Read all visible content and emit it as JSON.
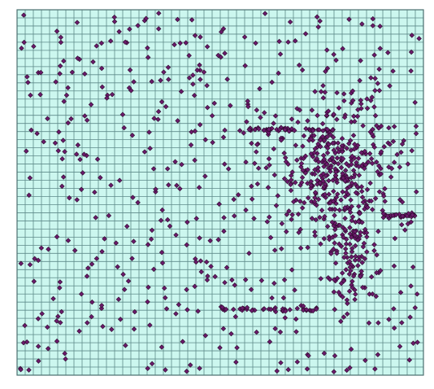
{
  "map": {
    "background_color": "#ffffff",
    "fill_color": "#ccf7ef",
    "grid_color": "#5e8a8a",
    "frame_color": "#4a6f6f",
    "point_fill": "#6b1a6b",
    "point_stroke": "#2b0a2b",
    "grid": {
      "columns": 50,
      "rows": 45
    },
    "point_marker": "diamond",
    "point_density": {
      "cluster": "east-center",
      "total_points_approx": 1000
    }
  }
}
